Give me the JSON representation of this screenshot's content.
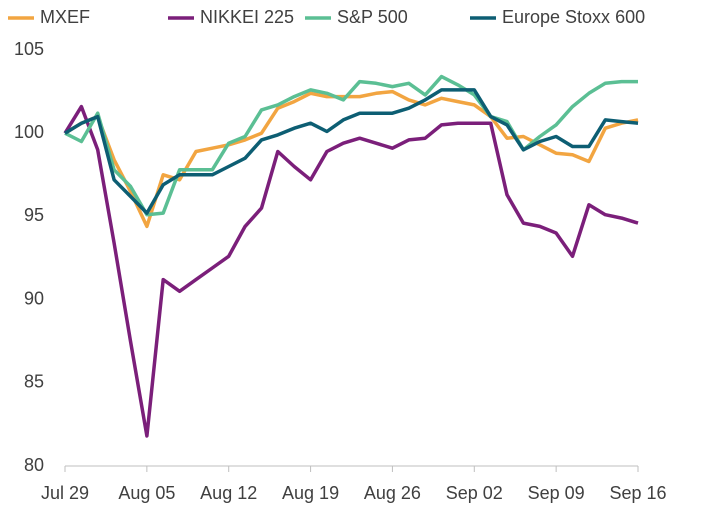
{
  "chart_data": {
    "type": "line",
    "categories": [
      "Jul 29",
      null,
      null,
      null,
      null,
      "Aug 05",
      null,
      null,
      null,
      null,
      "Aug 12",
      null,
      null,
      null,
      null,
      "Aug 19",
      null,
      null,
      null,
      null,
      "Aug 26",
      null,
      null,
      null,
      null,
      "Sep 02",
      null,
      null,
      null,
      null,
      "Sep 09",
      null,
      null,
      null,
      null,
      "Sep 16"
    ],
    "series": [
      {
        "name": "MXEF",
        "color": "#f2a541",
        "values": [
          100,
          100.6,
          101.0,
          98.4,
          96.5,
          94.4,
          97.5,
          97.2,
          98.9,
          99.1,
          99.3,
          99.6,
          100.0,
          101.5,
          101.9,
          102.4,
          102.2,
          102.2,
          102.2,
          102.4,
          102.5,
          102.0,
          101.7,
          102.1,
          101.9,
          101.7,
          101.0,
          99.7,
          99.8,
          99.3,
          98.8,
          98.7,
          98.3,
          100.3,
          100.6,
          100.8
        ]
      },
      {
        "name": "NIKKEI 225",
        "color": "#7b1f7a",
        "values": [
          100,
          101.6,
          99.0,
          93.4,
          87.5,
          81.8,
          91.2,
          90.5,
          91.2,
          91.9,
          92.6,
          94.4,
          95.5,
          98.9,
          98.0,
          97.2,
          98.9,
          99.4,
          99.7,
          99.4,
          99.1,
          99.6,
          99.7,
          100.5,
          100.6,
          100.6,
          100.6,
          96.3,
          94.6,
          94.4,
          94.0,
          92.6,
          95.7,
          95.1,
          94.9,
          94.6
        ]
      },
      {
        "name": "S&P 500",
        "color": "#5bbf94",
        "values": [
          100,
          99.5,
          101.2,
          97.8,
          96.8,
          95.1,
          95.2,
          97.8,
          97.8,
          97.8,
          99.4,
          99.8,
          101.4,
          101.7,
          102.2,
          102.6,
          102.4,
          102.0,
          103.1,
          103.0,
          102.8,
          103.0,
          102.3,
          103.4,
          102.9,
          102.3,
          101.0,
          100.7,
          99.0,
          99.8,
          100.5,
          101.6,
          102.4,
          103.0,
          103.1,
          103.1
        ]
      },
      {
        "name": "Europe Stoxx 600",
        "color": "#0d5e73",
        "values": [
          100,
          100.6,
          101.0,
          97.2,
          96.2,
          95.2,
          96.9,
          97.5,
          97.5,
          97.5,
          98.0,
          98.5,
          99.6,
          99.9,
          100.3,
          100.6,
          100.1,
          100.8,
          101.2,
          101.2,
          101.2,
          101.5,
          102.0,
          102.6,
          102.6,
          102.6,
          101.0,
          100.5,
          99.0,
          99.5,
          99.8,
          99.2,
          99.2,
          100.8,
          100.7,
          100.6
        ]
      }
    ],
    "ylim": [
      80,
      105
    ],
    "yticks": [
      80,
      85,
      90,
      95,
      100,
      105
    ]
  }
}
